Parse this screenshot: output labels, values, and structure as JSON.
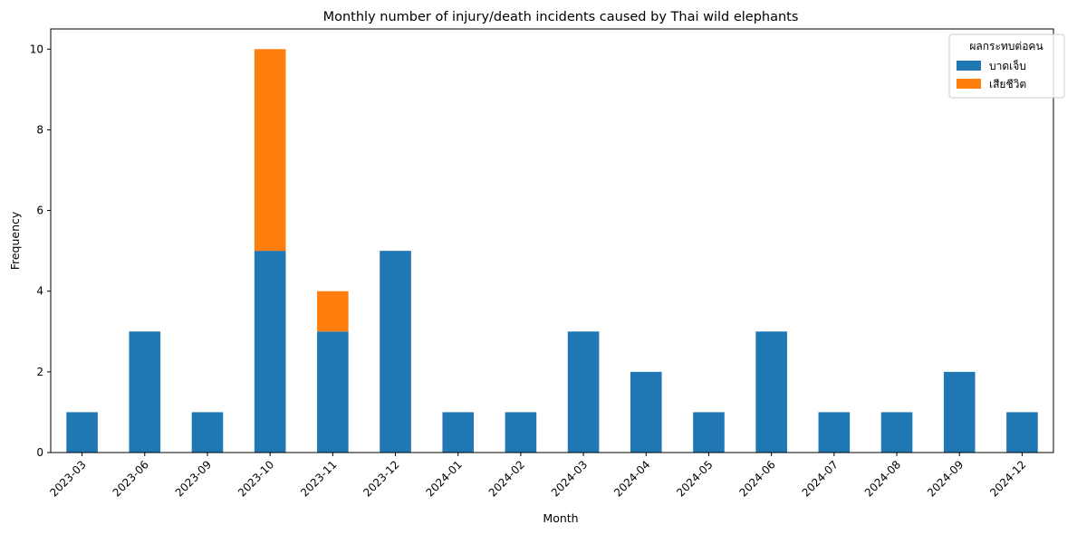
{
  "chart_data": {
    "type": "bar",
    "stacked": true,
    "title": "Monthly number of injury/death incidents caused by Thai wild elephants",
    "xlabel": "Month",
    "ylabel": "Frequency",
    "ylim": [
      0,
      10.5
    ],
    "yticks": [
      0,
      2,
      4,
      6,
      8,
      10
    ],
    "grid": false,
    "legend_position": "top-right",
    "legend_title": "ผลกระทบต่อคน",
    "categories": [
      "2023-03",
      "2023-06",
      "2023-09",
      "2023-10",
      "2023-11",
      "2023-12",
      "2024-01",
      "2024-02",
      "2024-03",
      "2024-04",
      "2024-05",
      "2024-06",
      "2024-07",
      "2024-08",
      "2024-09",
      "2024-12"
    ],
    "series": [
      {
        "name": "บาดเจ็บ",
        "color": "#1f77b4",
        "values": [
          1,
          3,
          1,
          5,
          3,
          5,
          1,
          1,
          3,
          2,
          1,
          3,
          1,
          1,
          2,
          1
        ]
      },
      {
        "name": "เสียชีวิต",
        "color": "#ff7f0e",
        "values": [
          0,
          0,
          0,
          5,
          1,
          0,
          0,
          0,
          0,
          0,
          0,
          0,
          0,
          0,
          0,
          0
        ]
      }
    ]
  }
}
